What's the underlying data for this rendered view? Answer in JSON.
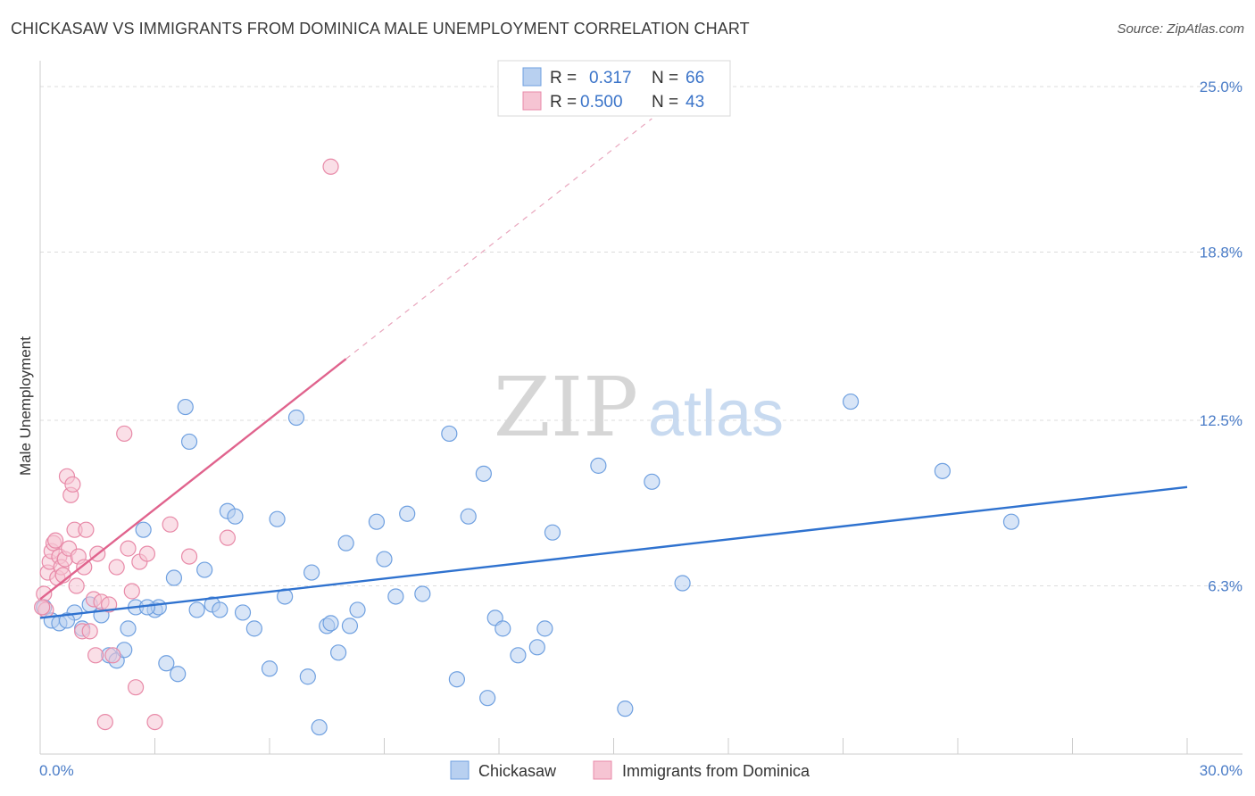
{
  "chart_data": {
    "type": "scatter",
    "title": "CHICKASAW VS IMMIGRANTS FROM DOMINICA MALE UNEMPLOYMENT CORRELATION CHART",
    "source": "Source: ZipAtlas.com",
    "ylabel": "Male Unemployment",
    "xlim": [
      0,
      30
    ],
    "ylim": [
      0,
      25
    ],
    "x_tick_labels": [
      "0.0%",
      "30.0%"
    ],
    "y_ticks": [
      6.3,
      12.5,
      18.8,
      25.0
    ],
    "y_tick_labels": [
      "6.3%",
      "12.5%",
      "18.8%",
      "25.0%"
    ],
    "grid": true,
    "legend_position": "top-center",
    "watermark": "ZIPatlas",
    "series": [
      {
        "name": "Chickasaw",
        "color": "#6fa0e0",
        "fill": "#b8d0f0",
        "r_label": "R =",
        "r_value": "0.317",
        "n_label": "N =",
        "n_value": "66",
        "trend": {
          "x0": 0,
          "y0": 5.1,
          "x1": 30,
          "y1": 10.0
        },
        "points": [
          [
            0.3,
            5.0
          ],
          [
            0.5,
            4.9
          ],
          [
            0.9,
            5.3
          ],
          [
            1.1,
            4.7
          ],
          [
            1.6,
            5.2
          ],
          [
            1.8,
            3.7
          ],
          [
            2.0,
            3.5
          ],
          [
            2.2,
            3.9
          ],
          [
            2.3,
            4.7
          ],
          [
            2.5,
            5.5
          ],
          [
            2.7,
            8.4
          ],
          [
            3.0,
            5.4
          ],
          [
            3.1,
            5.5
          ],
          [
            3.3,
            3.4
          ],
          [
            3.5,
            6.6
          ],
          [
            3.6,
            3.0
          ],
          [
            3.8,
            13.0
          ],
          [
            3.9,
            11.7
          ],
          [
            4.1,
            5.4
          ],
          [
            4.3,
            6.9
          ],
          [
            4.5,
            5.6
          ],
          [
            4.7,
            5.4
          ],
          [
            4.9,
            9.1
          ],
          [
            5.1,
            8.9
          ],
          [
            5.3,
            5.3
          ],
          [
            5.6,
            4.7
          ],
          [
            6.0,
            3.2
          ],
          [
            6.2,
            8.8
          ],
          [
            6.4,
            5.9
          ],
          [
            6.7,
            12.6
          ],
          [
            7.0,
            2.9
          ],
          [
            7.1,
            6.8
          ],
          [
            7.3,
            1.0
          ],
          [
            7.5,
            4.8
          ],
          [
            7.6,
            4.9
          ],
          [
            7.8,
            3.8
          ],
          [
            8.0,
            7.9
          ],
          [
            8.1,
            4.8
          ],
          [
            8.3,
            5.4
          ],
          [
            8.8,
            8.7
          ],
          [
            9.0,
            7.3
          ],
          [
            9.3,
            5.9
          ],
          [
            9.6,
            9.0
          ],
          [
            10.0,
            6.0
          ],
          [
            10.7,
            12.0
          ],
          [
            10.9,
            2.8
          ],
          [
            11.2,
            8.9
          ],
          [
            11.6,
            10.5
          ],
          [
            11.7,
            2.1
          ],
          [
            11.9,
            5.1
          ],
          [
            12.1,
            4.7
          ],
          [
            12.5,
            3.7
          ],
          [
            13.0,
            4.0
          ],
          [
            13.2,
            4.7
          ],
          [
            13.4,
            8.3
          ],
          [
            14.6,
            10.8
          ],
          [
            15.3,
            1.7
          ],
          [
            16.0,
            10.2
          ],
          [
            16.8,
            6.4
          ],
          [
            21.2,
            13.2
          ],
          [
            23.6,
            10.6
          ],
          [
            25.4,
            8.7
          ],
          [
            0.1,
            5.5
          ],
          [
            0.7,
            5.0
          ],
          [
            1.3,
            5.6
          ],
          [
            2.8,
            5.5
          ]
        ]
      },
      {
        "name": "Immigrants from Dominica",
        "color": "#e88aa8",
        "fill": "#f6c4d3",
        "r_label": "R =",
        "r_value": "0.500",
        "n_label": "N =",
        "n_value": "43",
        "trend": {
          "x0": 0,
          "y0": 5.8,
          "x1": 8.0,
          "y1": 14.8
        },
        "trend_dashed": {
          "x0": 8.0,
          "y0": 14.8,
          "x1": 16.0,
          "y1": 23.8
        },
        "points": [
          [
            0.1,
            6.0
          ],
          [
            0.15,
            5.4
          ],
          [
            0.2,
            6.8
          ],
          [
            0.25,
            7.2
          ],
          [
            0.3,
            7.6
          ],
          [
            0.35,
            7.9
          ],
          [
            0.4,
            8.0
          ],
          [
            0.45,
            6.6
          ],
          [
            0.5,
            7.4
          ],
          [
            0.55,
            7.0
          ],
          [
            0.6,
            6.7
          ],
          [
            0.65,
            7.3
          ],
          [
            0.7,
            10.4
          ],
          [
            0.75,
            7.7
          ],
          [
            0.8,
            9.7
          ],
          [
            0.85,
            10.1
          ],
          [
            0.9,
            8.4
          ],
          [
            0.95,
            6.3
          ],
          [
            1.0,
            7.4
          ],
          [
            1.1,
            4.6
          ],
          [
            1.2,
            8.4
          ],
          [
            1.3,
            4.6
          ],
          [
            1.4,
            5.8
          ],
          [
            1.45,
            3.7
          ],
          [
            1.5,
            7.5
          ],
          [
            1.6,
            5.7
          ],
          [
            1.7,
            1.2
          ],
          [
            1.8,
            5.6
          ],
          [
            1.9,
            3.7
          ],
          [
            2.0,
            7.0
          ],
          [
            2.2,
            12.0
          ],
          [
            2.3,
            7.7
          ],
          [
            2.4,
            6.1
          ],
          [
            2.5,
            2.5
          ],
          [
            2.6,
            7.2
          ],
          [
            2.8,
            7.5
          ],
          [
            3.0,
            1.2
          ],
          [
            3.4,
            8.6
          ],
          [
            3.9,
            7.4
          ],
          [
            4.9,
            8.1
          ],
          [
            7.6,
            22.0
          ],
          [
            0.05,
            5.5
          ],
          [
            1.15,
            7.0
          ]
        ]
      }
    ]
  }
}
